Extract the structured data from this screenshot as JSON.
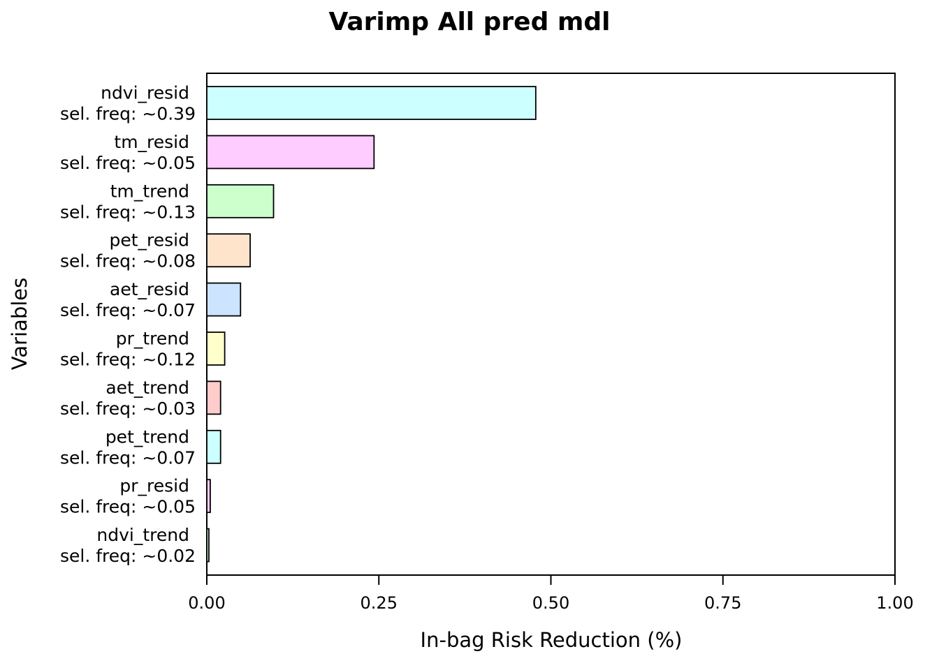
{
  "chart_data": {
    "type": "bar",
    "orientation": "horizontal",
    "title": "Varimp All pred mdl",
    "xlabel": "In-bag Risk Reduction (%)",
    "ylabel": "Variables",
    "xlim": [
      0,
      1
    ],
    "xticks": [
      "0.00",
      "0.25",
      "0.50",
      "0.75",
      "1.00"
    ],
    "tick_values": [
      0,
      0.25,
      0.5,
      0.75,
      1.0
    ],
    "grid": false,
    "legend": "none",
    "categories": [
      {
        "name": "ndvi_resid",
        "sel_freq": "sel. freq: ~0.39",
        "value": 0.478,
        "color": "#ccffff"
      },
      {
        "name": "tm_resid",
        "sel_freq": "sel. freq: ~0.05",
        "value": 0.243,
        "color": "#ffccff"
      },
      {
        "name": "tm_trend",
        "sel_freq": "sel. freq: ~0.13",
        "value": 0.097,
        "color": "#ccffcc"
      },
      {
        "name": "pet_resid",
        "sel_freq": "sel. freq: ~0.08",
        "value": 0.063,
        "color": "#ffe4cc"
      },
      {
        "name": "aet_resid",
        "sel_freq": "sel. freq: ~0.07",
        "value": 0.049,
        "color": "#cce4ff"
      },
      {
        "name": "pr_trend",
        "sel_freq": "sel. freq: ~0.12",
        "value": 0.026,
        "color": "#ffffcc"
      },
      {
        "name": "aet_trend",
        "sel_freq": "sel. freq: ~0.03",
        "value": 0.02,
        "color": "#ffcccc"
      },
      {
        "name": "pet_trend",
        "sel_freq": "sel. freq: ~0.07",
        "value": 0.02,
        "color": "#ccffff"
      },
      {
        "name": "pr_resid",
        "sel_freq": "sel. freq: ~0.05",
        "value": 0.005,
        "color": "#ffccff"
      },
      {
        "name": "ndvi_trend",
        "sel_freq": "sel. freq: ~0.02",
        "value": 0.003,
        "color": "#ccffcc"
      }
    ]
  }
}
